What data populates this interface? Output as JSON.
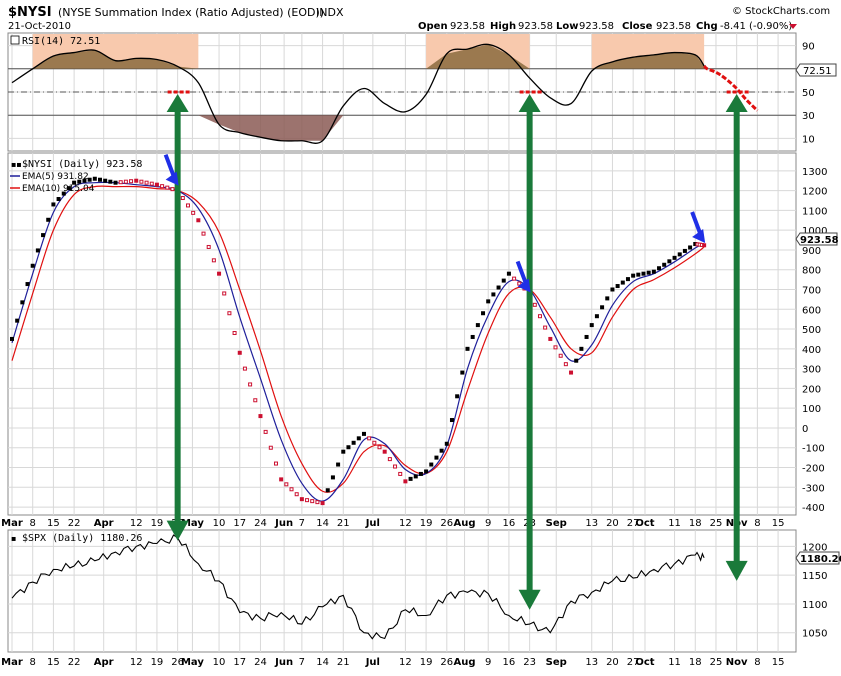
{
  "header": {
    "symbol": "$NYSI",
    "description": "(NYSE Summation Index (Ratio Adjusted) (EOD))",
    "exchange": "INDX",
    "date": "21-Oct-2010",
    "open_label": "Open",
    "open": "923.58",
    "high_label": "High",
    "high": "923.58",
    "low_label": "Low",
    "low": "923.58",
    "close_label": "Close",
    "close": "923.58",
    "chg_label": "Chg",
    "chg": "-8.41 (-0.90%)",
    "brand": "© StockCharts.com"
  },
  "colors": {
    "rsi_line": "#000000",
    "overbought_fill": "#8b6b3e",
    "oversold_fill": "#8b5a55",
    "highlight": "#f8c9ad",
    "ema5": "#1f1f9a",
    "ema10": "#e01010",
    "up_point": "#000000",
    "down_point": "#cc1030",
    "annotation_green": "#1a7a3a",
    "annotation_blue": "#1f2fe6",
    "annotation_red": "#e01010"
  },
  "x_axis_labels": [
    "Mar",
    "8",
    "15",
    "22",
    "Apr",
    "12",
    "19",
    "26",
    "May",
    "10",
    "17",
    "24",
    "Jun",
    "7",
    "14",
    "21",
    "Jul",
    "12",
    "19",
    "26",
    "Aug",
    "9",
    "16",
    "23",
    "Sep",
    "13",
    "20",
    "27",
    "Oct",
    "11",
    "18",
    "25",
    "Nov",
    "8",
    "15"
  ],
  "chart_data": [
    {
      "type": "line",
      "panel": "rsi",
      "legend": "RSI(14) 72.51",
      "current_value_label": "72.51",
      "yticks": [
        10,
        30,
        50,
        70,
        90
      ],
      "ylim": [
        0,
        100
      ],
      "reference_lines": [
        30,
        50,
        70
      ],
      "x": [
        "Mar 1",
        "Mar 8",
        "Mar 15",
        "Mar 22",
        "Mar 29",
        "Apr 5",
        "Apr 12",
        "Apr 19",
        "Apr 26",
        "May 3",
        "May 10",
        "May 17",
        "May 24",
        "May 31",
        "Jun 7",
        "Jun 14",
        "Jun 21",
        "Jun 28",
        "Jul 5",
        "Jul 12",
        "Jul 19",
        "Jul 26",
        "Aug 2",
        "Aug 9",
        "Aug 16",
        "Aug 23",
        "Aug 30",
        "Sep 6",
        "Sep 13",
        "Sep 20",
        "Sep 27",
        "Oct 4",
        "Oct 11",
        "Oct 18",
        "Oct 21"
      ],
      "values": [
        58,
        70,
        81,
        84,
        86,
        77,
        79,
        78,
        72,
        58,
        22,
        15,
        11,
        8,
        8,
        8,
        38,
        53,
        40,
        33,
        48,
        83,
        87,
        91,
        82,
        62,
        45,
        40,
        68,
        76,
        80,
        82,
        84,
        82,
        72.51
      ],
      "projection": {
        "x": [
          "Oct 22",
          "Oct 25",
          "Oct 28",
          "Nov 1",
          "Nov 4",
          "Nov 8"
        ],
        "values": [
          70,
          67,
          62,
          53,
          44,
          34
        ]
      }
    },
    {
      "type": "scatter",
      "panel": "nysi",
      "legend": [
        "$NYSI (Daily) 923.58",
        "EMA(5) 931.82",
        "EMA(10) 915.04"
      ],
      "current_value_label": "923.58",
      "yticks": [
        -400,
        -300,
        -200,
        -100,
        0,
        100,
        200,
        300,
        400,
        500,
        600,
        700,
        800,
        900,
        1000,
        1100,
        1200,
        1300
      ],
      "ylim": [
        -430,
        1380
      ],
      "x": [
        "Mar 1",
        "Mar 8",
        "Mar 15",
        "Mar 22",
        "Mar 29",
        "Apr 5",
        "Apr 12",
        "Apr 19",
        "Apr 26",
        "May 3",
        "May 10",
        "May 17",
        "May 24",
        "May 31",
        "Jun 7",
        "Jun 14",
        "Jun 21",
        "Jun 28",
        "Jul 5",
        "Jul 12",
        "Jul 19",
        "Jul 26",
        "Aug 2",
        "Aug 9",
        "Aug 16",
        "Aug 23",
        "Aug 30",
        "Sep 6",
        "Sep 13",
        "Sep 20",
        "Sep 27",
        "Oct 4",
        "Oct 11",
        "Oct 18",
        "Oct 21"
      ],
      "series": [
        {
          "name": "$NYSI (Daily)",
          "values": [
            450,
            820,
            1130,
            1240,
            1260,
            1240,
            1250,
            1230,
            1200,
            1050,
            780,
            380,
            60,
            -260,
            -360,
            -380,
            -120,
            -30,
            -120,
            -270,
            -220,
            -80,
            400,
            640,
            780,
            680,
            450,
            280,
            520,
            700,
            770,
            790,
            860,
            930,
            923.58
          ]
        },
        {
          "name": "EMA(5)",
          "values": [
            430,
            780,
            1090,
            1220,
            1240,
            1240,
            1230,
            1220,
            1200,
            1110,
            900,
            560,
            250,
            -60,
            -280,
            -370,
            -260,
            -60,
            -80,
            -210,
            -230,
            -90,
            300,
            570,
            740,
            700,
            510,
            340,
            420,
            620,
            740,
            780,
            840,
            910,
            931.82
          ]
        },
        {
          "name": "EMA(10)",
          "values": [
            340,
            680,
            1000,
            1180,
            1220,
            1220,
            1220,
            1210,
            1200,
            1140,
            990,
            700,
            390,
            60,
            -180,
            -320,
            -280,
            -120,
            -90,
            -190,
            -230,
            -120,
            190,
            480,
            680,
            700,
            560,
            400,
            380,
            560,
            700,
            750,
            810,
            880,
            915.04
          ]
        }
      ],
      "direction": [
        "up",
        "up",
        "up",
        "up",
        "up",
        "up",
        "down",
        "down",
        "down",
        "down",
        "down",
        "down",
        "down",
        "down",
        "down",
        "down",
        "up",
        "up",
        "down",
        "down",
        "up",
        "up",
        "up",
        "up",
        "up",
        "down",
        "down",
        "down",
        "up",
        "up",
        "up",
        "up",
        "up",
        "up",
        "down"
      ]
    },
    {
      "type": "line",
      "panel": "spx",
      "legend": "$SPX (Daily) 1180.26",
      "current_value_label": "1180.26",
      "yticks": [
        1050,
        1100,
        1150,
        1200
      ],
      "ylim": [
        1020,
        1225
      ],
      "x": [
        "Mar 1",
        "Mar 8",
        "Mar 15",
        "Mar 22",
        "Mar 29",
        "Apr 5",
        "Apr 12",
        "Apr 19",
        "Apr 26",
        "May 3",
        "May 10",
        "May 17",
        "May 24",
        "May 31",
        "Jun 7",
        "Jun 14",
        "Jun 21",
        "Jun 28",
        "Jul 5",
        "Jul 12",
        "Jul 19",
        "Jul 26",
        "Aug 2",
        "Aug 9",
        "Aug 16",
        "Aug 23",
        "Aug 30",
        "Sep 6",
        "Sep 13",
        "Sep 20",
        "Sep 27",
        "Oct 4",
        "Oct 11",
        "Oct 18",
        "Oct 21"
      ],
      "values": [
        1110,
        1138,
        1160,
        1166,
        1175,
        1190,
        1200,
        1205,
        1215,
        1170,
        1140,
        1085,
        1075,
        1085,
        1065,
        1095,
        1115,
        1050,
        1040,
        1090,
        1080,
        1115,
        1120,
        1118,
        1080,
        1065,
        1050,
        1105,
        1120,
        1140,
        1145,
        1160,
        1170,
        1185,
        1180.26
      ]
    }
  ],
  "annotations": {
    "green_arrows": [
      {
        "x": "Apr 26",
        "from_panel": "rsi",
        "from_value": 50,
        "to_panel": "spx",
        "to_value": 1210,
        "heads": "both"
      },
      {
        "x": "Aug 23",
        "from_panel": "rsi",
        "from_value": 50,
        "to_panel": "spx",
        "to_value": 1090,
        "heads": "both"
      },
      {
        "x": "Nov 1",
        "from_panel": "rsi",
        "from_value": 50,
        "to_panel": "spx",
        "to_value": 1140,
        "heads": "both"
      }
    ],
    "blue_arrows": [
      {
        "x": "Apr 26",
        "panel": "nysi",
        "value": 1220
      },
      {
        "x": "Aug 23",
        "panel": "nysi",
        "value": 680
      },
      {
        "x": "Oct 21",
        "panel": "nysi",
        "value": 930
      }
    ],
    "red_dashes_rsi50": [
      "Apr 26",
      "Aug 23",
      "Nov 1"
    ]
  }
}
